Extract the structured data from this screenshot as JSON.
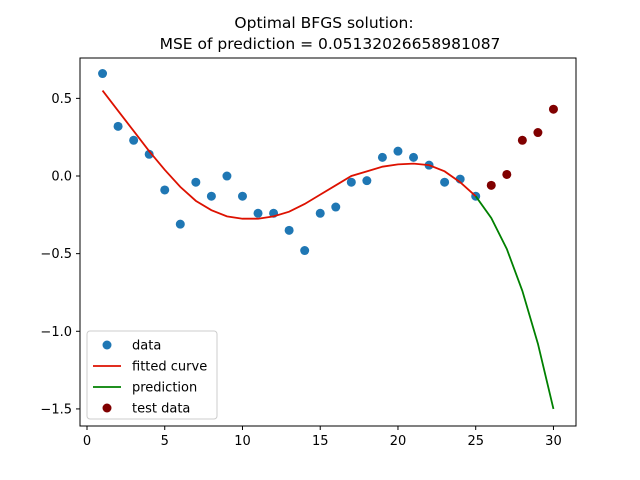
{
  "chart_data": {
    "type": "line",
    "title_line1": "Optimal BFGS solution:",
    "title_line2": "MSE of prediction = 0.05132026658981087",
    "xlabel": "",
    "ylabel": "",
    "xlim": [
      -0.45,
      31.45
    ],
    "ylim": [
      -1.61,
      0.76
    ],
    "x_ticks": [
      0,
      5,
      10,
      15,
      20,
      25,
      30
    ],
    "y_ticks": [
      0.5,
      0.0,
      -0.5,
      -1.0,
      -1.5
    ],
    "y_tick_labels": [
      "0.5",
      "0.0",
      "−0.5",
      "−1.0",
      "−1.5"
    ],
    "grid": false,
    "legend_position": "lower-left",
    "colors": {
      "data": "#1f77b4",
      "fitted": "#dd1100",
      "prediction": "#008000",
      "test": "#800000"
    },
    "legend": [
      "data",
      "fitted curve",
      "prediction",
      "test data"
    ],
    "series": [
      {
        "name": "data",
        "kind": "scatter",
        "x": [
          1,
          2,
          3,
          4,
          5,
          6,
          7,
          8,
          9,
          10,
          11,
          12,
          13,
          14,
          15,
          16,
          17,
          18,
          19,
          20,
          21,
          22,
          23,
          24,
          25
        ],
        "y": [
          0.66,
          0.32,
          0.23,
          0.14,
          -0.09,
          -0.31,
          -0.04,
          -0.13,
          0.0,
          -0.13,
          -0.24,
          -0.24,
          -0.35,
          -0.48,
          -0.24,
          -0.2,
          -0.04,
          -0.03,
          0.12,
          0.16,
          0.12,
          0.07,
          -0.04,
          -0.02,
          -0.13
        ]
      },
      {
        "name": "fitted curve",
        "kind": "line",
        "x": [
          1,
          2,
          3,
          4,
          5,
          6,
          7,
          8,
          9,
          10,
          11,
          12,
          13,
          14,
          15,
          16,
          17,
          18,
          19,
          20,
          21,
          22,
          23,
          24,
          25
        ],
        "y": [
          0.55,
          0.42,
          0.29,
          0.16,
          0.04,
          -0.07,
          -0.16,
          -0.22,
          -0.26,
          -0.275,
          -0.275,
          -0.26,
          -0.23,
          -0.18,
          -0.12,
          -0.06,
          0.0,
          0.03,
          0.06,
          0.075,
          0.08,
          0.07,
          0.03,
          -0.04,
          -0.13
        ]
      },
      {
        "name": "prediction",
        "kind": "line",
        "x": [
          25,
          26,
          27,
          28,
          29,
          30
        ],
        "y": [
          -0.13,
          -0.27,
          -0.47,
          -0.74,
          -1.08,
          -1.5
        ]
      },
      {
        "name": "test data",
        "kind": "scatter",
        "x": [
          26,
          27,
          28,
          29,
          30
        ],
        "y": [
          -0.06,
          0.01,
          0.23,
          0.28,
          0.43
        ]
      }
    ]
  }
}
